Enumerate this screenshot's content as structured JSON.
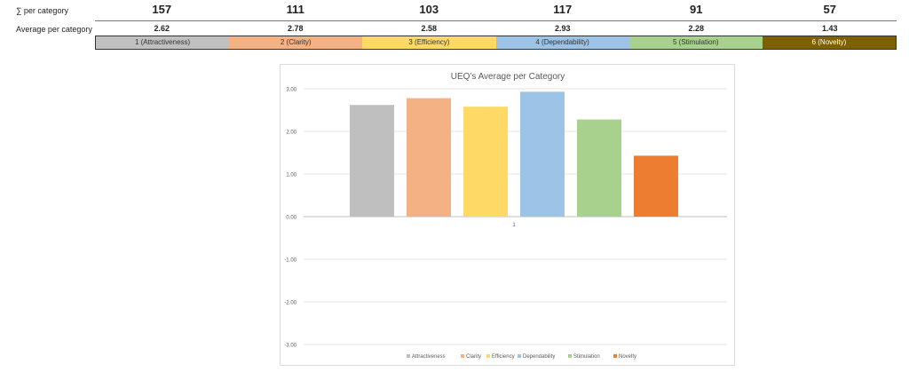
{
  "table": {
    "sum_label": "∑ per category",
    "avg_label": "Average per category",
    "sums": [
      "157",
      "111",
      "103",
      "117",
      "91",
      "57"
    ],
    "averages": [
      "2.62",
      "2.78",
      "2.58",
      "2.93",
      "2.28",
      "1.43"
    ],
    "categories": [
      {
        "label": "1 (Attractiveness)",
        "color": "#c0c0c0",
        "text": "#333"
      },
      {
        "label": "2 (Clarity)",
        "color": "#f4b183",
        "text": "#333"
      },
      {
        "label": "3 (Efficiency)",
        "color": "#ffd966",
        "text": "#333"
      },
      {
        "label": "4 (Dependability)",
        "color": "#9dc3e6",
        "text": "#333"
      },
      {
        "label": "5 (Stimulation)",
        "color": "#a9d18e",
        "text": "#333"
      },
      {
        "label": "6 (Novelty)",
        "color": "#7f6000",
        "text": "#fff"
      }
    ]
  },
  "chart_data": {
    "type": "bar",
    "title": "UEQ's Average per Category",
    "categories": [
      "1"
    ],
    "ylim": [
      -3,
      3
    ],
    "yticks": [
      "-3.00",
      "-2.00",
      "-1.00",
      "0.00",
      "1.00",
      "2.00",
      "3.00"
    ],
    "grid": true,
    "legend": "bottom",
    "series": [
      {
        "name": "Attractiveness",
        "values": [
          2.62
        ],
        "color": "#bfbfbf"
      },
      {
        "name": "Clarity",
        "values": [
          2.78
        ],
        "color": "#f4b183"
      },
      {
        "name": "Efficiency",
        "values": [
          2.58
        ],
        "color": "#ffd966"
      },
      {
        "name": "Dependability",
        "values": [
          2.93
        ],
        "color": "#9dc3e6"
      },
      {
        "name": "Stimulation",
        "values": [
          2.28
        ],
        "color": "#a9d18e"
      },
      {
        "name": "Novelty",
        "values": [
          1.43
        ],
        "color": "#ed7d31"
      }
    ]
  }
}
